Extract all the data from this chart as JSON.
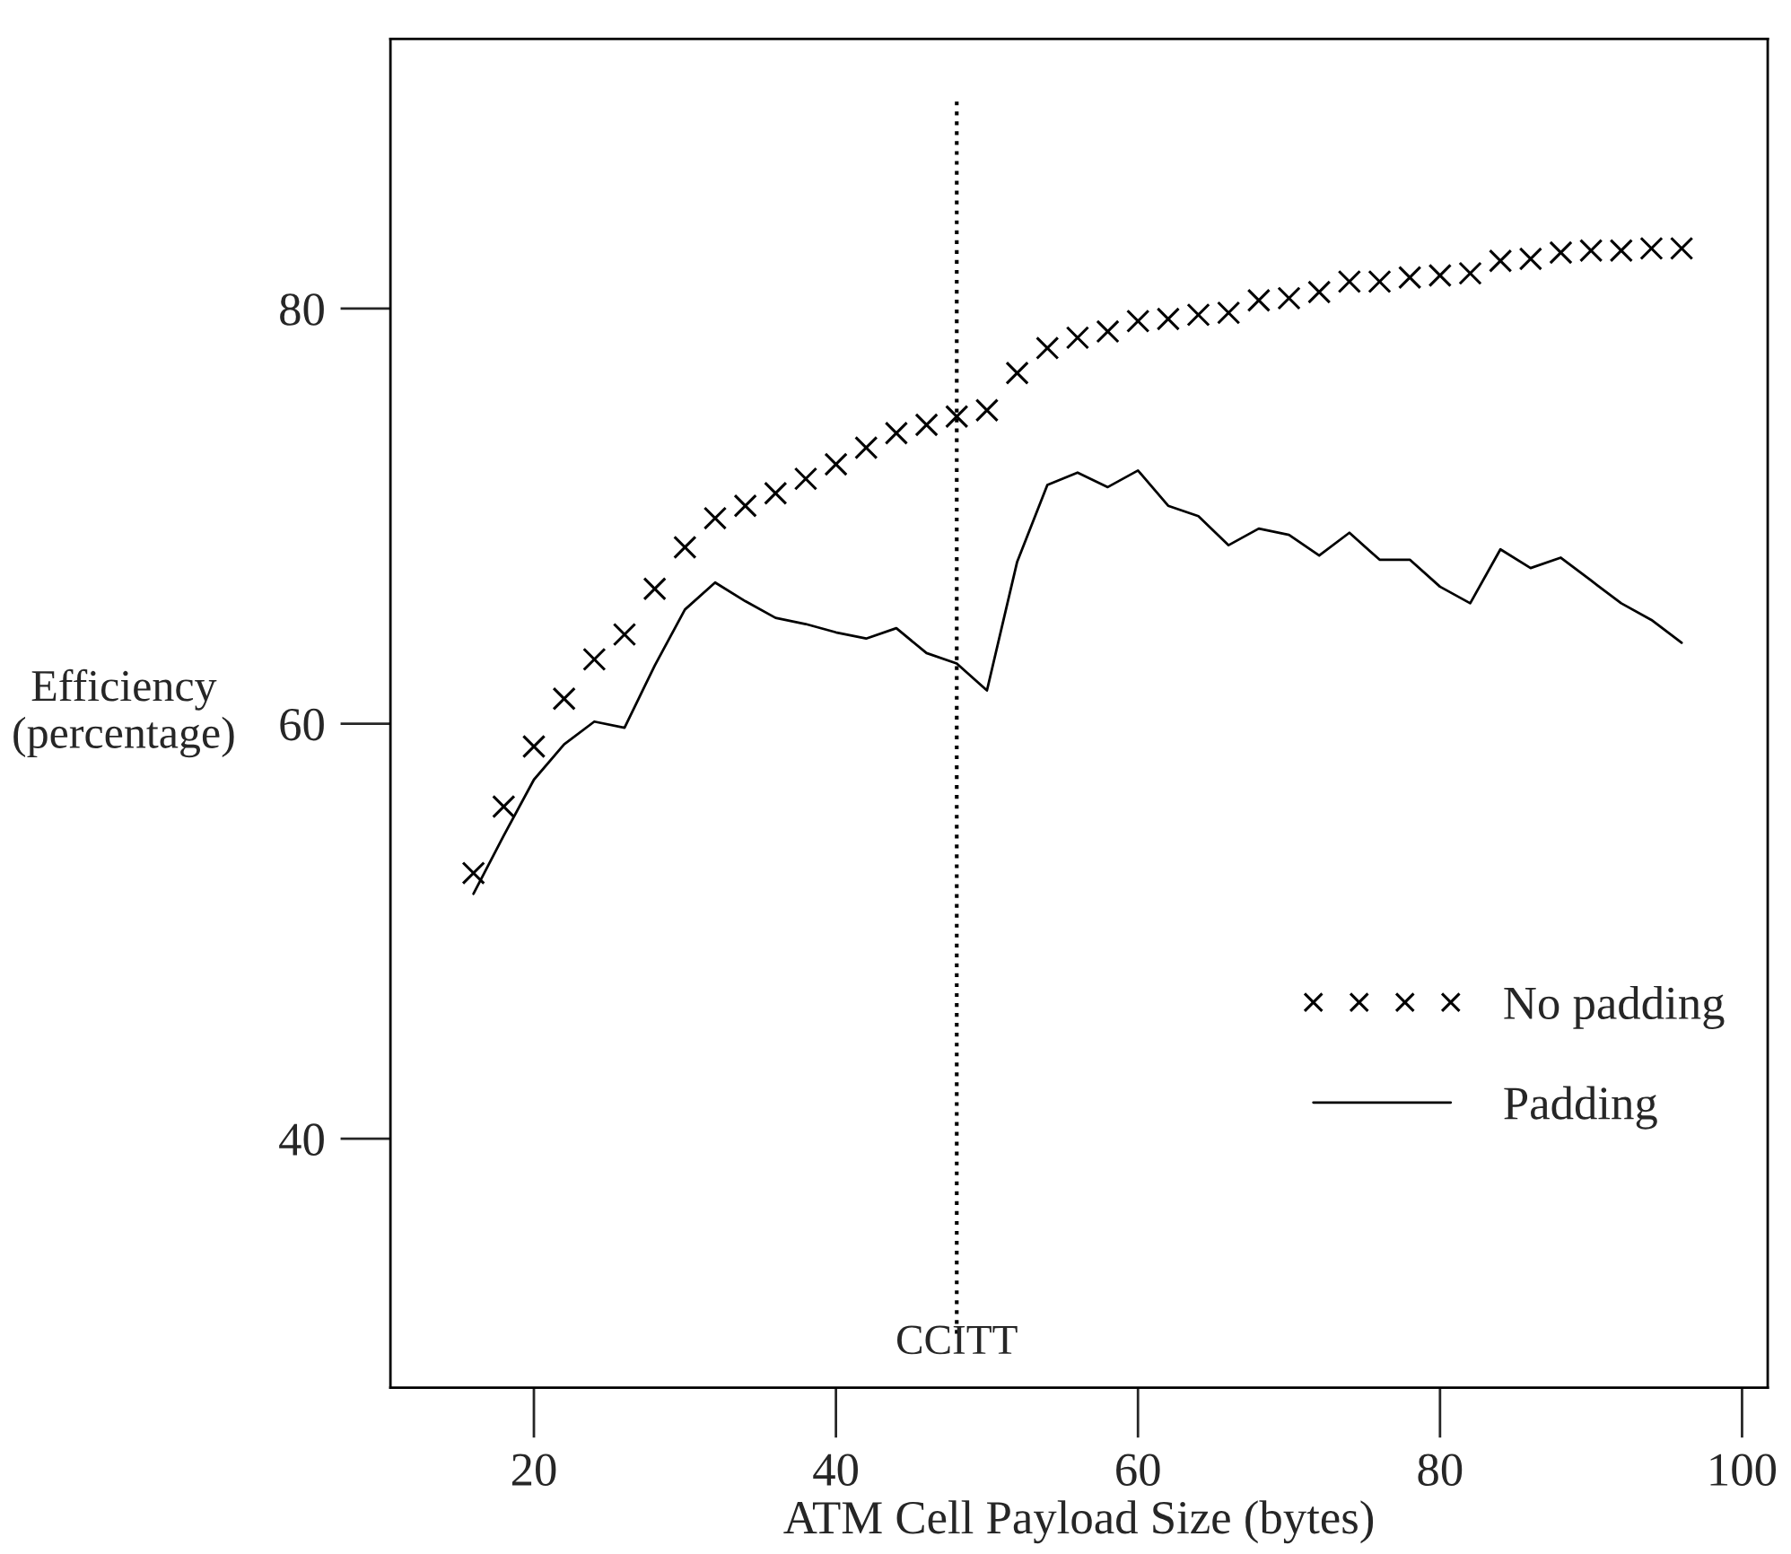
{
  "chart_data": {
    "type": "line",
    "xlabel": "ATM Cell Payload Size (bytes)",
    "ylabel": "Efficiency\n(percentage)",
    "x": [
      16,
      18,
      20,
      22,
      24,
      26,
      28,
      30,
      32,
      34,
      36,
      38,
      40,
      42,
      44,
      46,
      48,
      50,
      52,
      54,
      56,
      58,
      60,
      62,
      64,
      66,
      68,
      70,
      72,
      74,
      76,
      78,
      80,
      82,
      84,
      86,
      88,
      90,
      92,
      94,
      96
    ],
    "series": [
      {
        "name": "No padding",
        "type": "scatter",
        "marker": "cross",
        "color": "#000000",
        "values": [
          52.8,
          56.0,
          58.9,
          61.2,
          63.1,
          64.3,
          66.5,
          68.5,
          69.9,
          70.5,
          71.1,
          71.8,
          72.5,
          73.3,
          74.0,
          74.4,
          74.8,
          75.1,
          76.9,
          78.1,
          78.6,
          78.9,
          79.4,
          79.5,
          79.7,
          79.8,
          80.4,
          80.5,
          80.8,
          81.3,
          81.3,
          81.5,
          81.6,
          81.7,
          82.3,
          82.4,
          82.7,
          82.8,
          82.8,
          82.9,
          82.9
        ]
      },
      {
        "name": "Padding",
        "line_style": "solid",
        "color": "#000000",
        "values": [
          51.8,
          54.6,
          57.3,
          59.0,
          60.1,
          59.8,
          62.8,
          65.5,
          66.8,
          65.9,
          65.1,
          64.8,
          64.4,
          64.1,
          64.6,
          63.4,
          62.9,
          61.6,
          67.8,
          71.5,
          72.1,
          71.4,
          72.2,
          70.5,
          70.0,
          68.6,
          69.4,
          69.1,
          68.1,
          69.2,
          67.9,
          67.9,
          66.6,
          65.8,
          68.4,
          67.5,
          68.0,
          66.9,
          65.8,
          65.0,
          63.9
        ]
      }
    ],
    "xlim": [
      10.5,
      101.7
    ],
    "ylim": [
      28,
      93
    ],
    "xticks": [
      20,
      40,
      60,
      80,
      100
    ],
    "yticks": [
      40,
      60,
      80
    ],
    "ref_lines": [
      {
        "axis": "x",
        "value": 48,
        "label": "CCITT",
        "line_style": "dotted",
        "color": "#000000"
      }
    ],
    "grid": false,
    "legend": "bottom right"
  }
}
